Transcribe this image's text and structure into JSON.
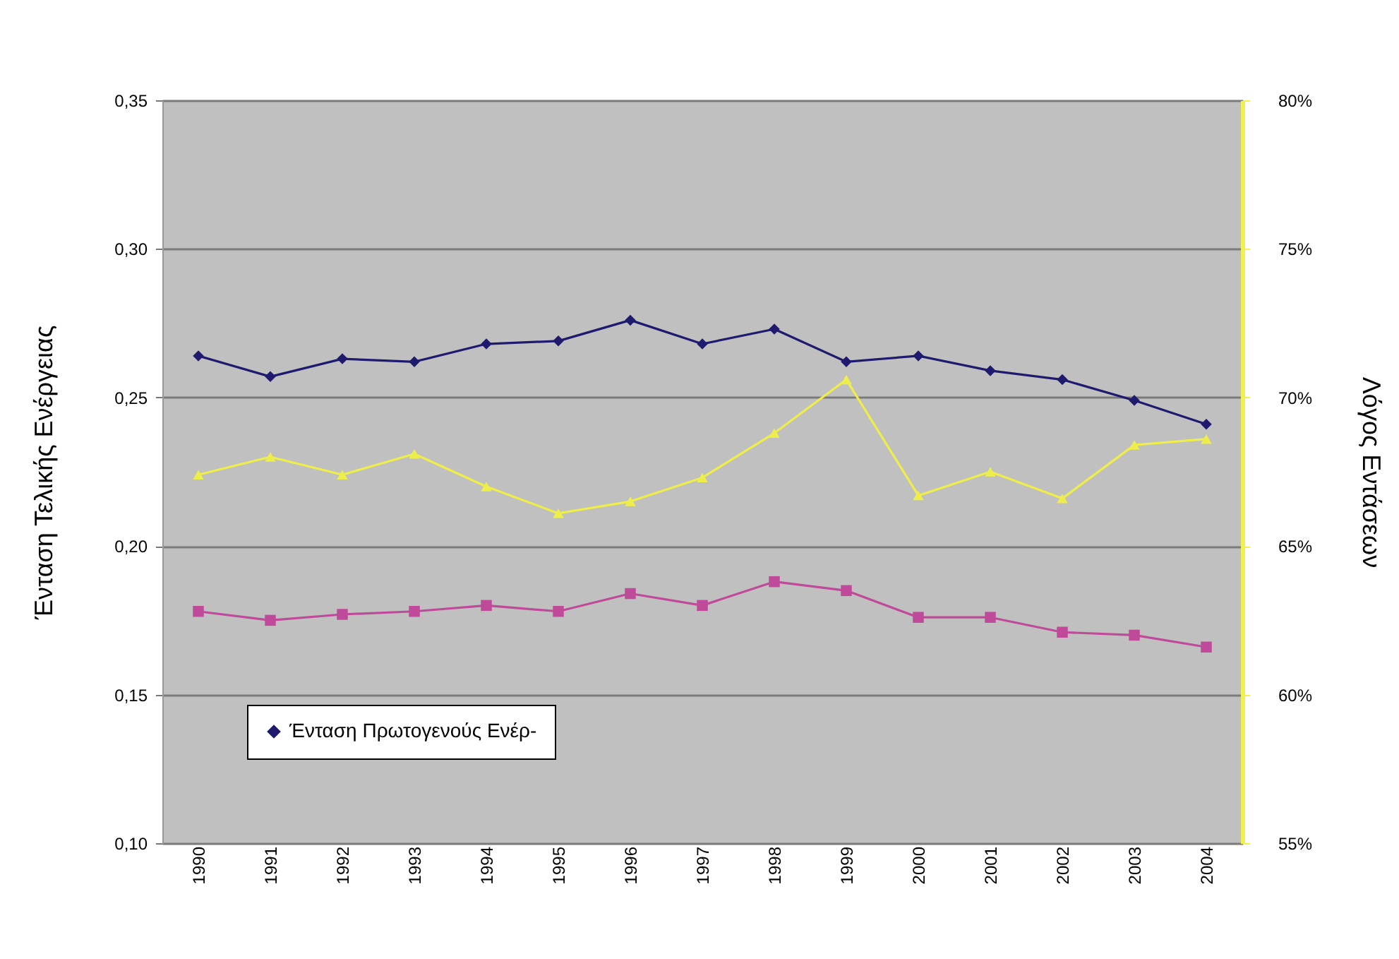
{
  "chart_data": {
    "type": "line",
    "categories": [
      "1990",
      "1991",
      "1992",
      "1993",
      "1994",
      "1995",
      "1996",
      "1997",
      "1998",
      "1999",
      "2000",
      "2001",
      "2002",
      "2003",
      "2004"
    ],
    "series": [
      {
        "name": "Ένταση Πρωτογενούς Ενέρ-",
        "color": "#1f1a6e",
        "marker": "diamond",
        "values": [
          0.264,
          0.257,
          0.263,
          0.262,
          0.268,
          0.269,
          0.276,
          0.268,
          0.273,
          0.262,
          0.264,
          0.259,
          0.256,
          0.249,
          0.241
        ]
      },
      {
        "color": "#c04a9a",
        "marker": "square",
        "values": [
          0.178,
          0.175,
          0.177,
          0.178,
          0.18,
          0.178,
          0.184,
          0.18,
          0.188,
          0.185,
          0.176,
          0.176,
          0.171,
          0.17,
          0.166
        ]
      },
      {
        "color": "#eeee4a",
        "marker": "triangle",
        "axis": "y2",
        "values": [
          67.4,
          68.0,
          67.4,
          68.1,
          67.0,
          66.1,
          66.5,
          67.3,
          68.8,
          70.6,
          66.7,
          67.5,
          66.6,
          68.4,
          68.6
        ]
      }
    ],
    "ylabel": "Ένταση Τελικής Ενέργειας",
    "y2label": "Λόγος Εντάσεων",
    "ylim": [
      0.1,
      0.35
    ],
    "yticks": [
      {
        "value": 0.1,
        "label": "0,10"
      },
      {
        "value": 0.15,
        "label": "0,15"
      },
      {
        "value": 0.2,
        "label": "0,20"
      },
      {
        "value": 0.25,
        "label": "0,25"
      },
      {
        "value": 0.3,
        "label": "0,30"
      },
      {
        "value": 0.35,
        "label": "0,35"
      }
    ],
    "y2lim": [
      55,
      80
    ],
    "y2ticks": [
      {
        "value": 55,
        "label": "55%"
      },
      {
        "value": 60,
        "label": "60%"
      },
      {
        "value": 65,
        "label": "65%"
      },
      {
        "value": 70,
        "label": "70%"
      },
      {
        "value": 75,
        "label": "75%"
      },
      {
        "value": 80,
        "label": "80%"
      }
    ],
    "grid": "y",
    "legend": "bottom left",
    "line_style": "solid"
  }
}
